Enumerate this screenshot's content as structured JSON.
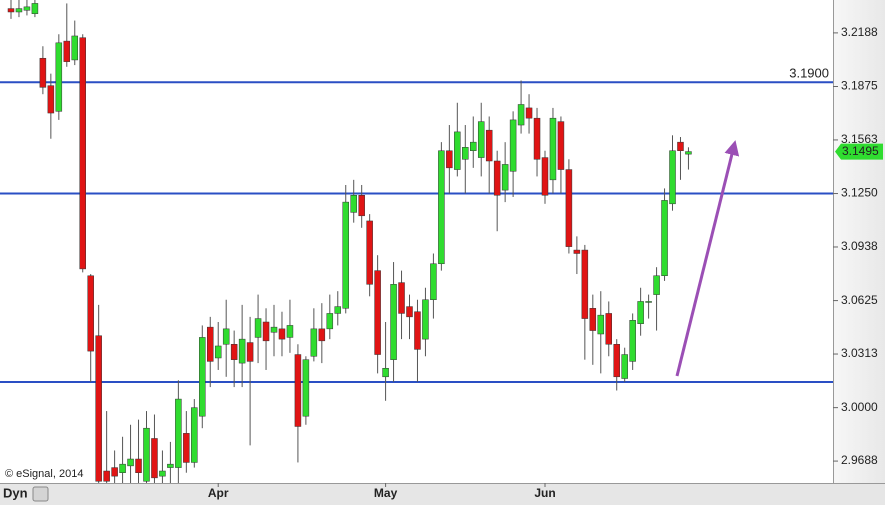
{
  "chart_data": {
    "type": "candlestick",
    "watermark": "© eSignal, 2014",
    "toolbar_label": "Dyn",
    "categories": [
      null,
      null,
      null,
      null,
      null,
      null,
      null,
      null,
      null,
      null,
      null,
      null,
      null,
      null,
      null,
      null,
      null,
      null,
      null,
      null,
      null,
      null,
      null,
      null,
      null,
      null,
      "Apr",
      null,
      null,
      null,
      null,
      null,
      null,
      null,
      null,
      null,
      null,
      null,
      null,
      null,
      null,
      null,
      null,
      null,
      null,
      null,
      null,
      "May",
      null,
      null,
      null,
      null,
      null,
      null,
      null,
      null,
      null,
      null,
      null,
      null,
      null,
      null,
      null,
      null,
      null,
      null,
      null,
      "Jun",
      null,
      null,
      null,
      null,
      null,
      null,
      null,
      null,
      null,
      null,
      null,
      null,
      null,
      null,
      null,
      null,
      null,
      null
    ],
    "open": [
      3.233,
      3.231,
      3.232,
      3.23,
      3.204,
      3.188,
      3.173,
      3.214,
      3.203,
      3.216,
      3.077,
      3.042,
      2.963,
      2.965,
      2.962,
      2.966,
      2.97,
      2.957,
      2.982,
      2.96,
      2.965,
      2.965,
      2.985,
      2.968,
      2.995,
      3.047,
      3.029,
      3.037,
      3.037,
      3.026,
      3.038,
      3.041,
      3.05,
      3.044,
      3.046,
      3.041,
      3.031,
      2.995,
      3.03,
      3.046,
      3.046,
      3.055,
      3.058,
      3.114,
      3.124,
      3.109,
      3.08,
      3.018,
      3.028,
      3.073,
      3.059,
      3.056,
      3.04,
      3.063,
      3.084,
      3.15,
      3.139,
      3.145,
      3.15,
      3.146,
      3.162,
      3.144,
      3.127,
      3.138,
      3.165,
      3.175,
      3.169,
      3.146,
      3.133,
      3.167,
      3.139,
      3.092,
      3.092,
      3.058,
      3.043,
      3.055,
      3.037,
      3.017,
      3.027,
      3.049,
      3.062,
      3.066,
      3.077,
      3.119,
      3.155,
      3.148
    ],
    "high": [
      3.238,
      3.238,
      3.238,
      3.238,
      3.211,
      3.195,
      3.218,
      3.236,
      3.226,
      3.218,
      3.078,
      3.06,
      2.998,
      2.975,
      2.983,
      2.99,
      2.993,
      2.998,
      2.996,
      2.975,
      2.98,
      3.016,
      2.998,
      3.005,
      3.048,
      3.053,
      3.05,
      3.063,
      3.045,
      3.06,
      3.053,
      3.066,
      3.058,
      3.06,
      3.056,
      3.063,
      3.037,
      3.03,
      3.058,
      3.061,
      3.066,
      3.068,
      3.13,
      3.133,
      3.13,
      3.113,
      3.089,
      3.05,
      3.085,
      3.08,
      3.066,
      3.063,
      3.07,
      3.09,
      3.155,
      3.165,
      3.178,
      3.165,
      3.17,
      3.178,
      3.17,
      3.15,
      3.155,
      3.173,
      3.191,
      3.183,
      3.175,
      3.15,
      3.175,
      3.17,
      3.145,
      3.1,
      3.095,
      3.066,
      3.068,
      3.062,
      3.04,
      3.035,
      3.055,
      3.07,
      3.066,
      3.082,
      3.128,
      3.159,
      3.158,
      3.152
    ],
    "low": [
      3.227,
      3.228,
      3.229,
      3.228,
      3.183,
      3.157,
      3.168,
      3.199,
      3.2,
      3.079,
      3.015,
      2.956,
      2.956,
      2.956,
      2.956,
      2.956,
      2.956,
      2.956,
      2.956,
      2.956,
      2.956,
      2.956,
      2.962,
      2.965,
      2.988,
      3.012,
      3.022,
      3.018,
      3.012,
      3.012,
      2.978,
      3.026,
      3.022,
      3.03,
      3.03,
      3.032,
      2.968,
      2.99,
      3.027,
      3.026,
      3.04,
      3.048,
      3.055,
      3.108,
      3.105,
      3.065,
      3.02,
      3.004,
      3.015,
      3.04,
      3.04,
      3.015,
      3.03,
      3.052,
      3.08,
      3.125,
      3.135,
      3.125,
      3.14,
      3.135,
      3.125,
      3.103,
      3.12,
      3.123,
      3.16,
      3.16,
      3.135,
      3.119,
      3.125,
      3.125,
      3.09,
      3.078,
      3.028,
      3.025,
      3.02,
      3.03,
      3.01,
      3.015,
      3.022,
      3.042,
      3.052,
      3.045,
      3.074,
      3.115,
      3.133,
      3.139
    ],
    "close": [
      3.231,
      3.233,
      3.234,
      3.236,
      3.187,
      3.172,
      3.213,
      3.202,
      3.217,
      3.081,
      3.033,
      2.957,
      2.957,
      2.96,
      2.967,
      2.97,
      2.962,
      2.988,
      2.959,
      2.963,
      2.967,
      3.005,
      2.968,
      3.0,
      3.041,
      3.027,
      3.036,
      3.046,
      3.028,
      3.04,
      3.027,
      3.052,
      3.039,
      3.047,
      3.04,
      3.048,
      2.989,
      3.028,
      3.046,
      3.039,
      3.055,
      3.059,
      3.12,
      3.124,
      3.112,
      3.072,
      3.031,
      3.023,
      3.072,
      3.055,
      3.053,
      3.034,
      3.063,
      3.084,
      3.15,
      3.14,
      3.161,
      3.152,
      3.155,
      3.167,
      3.144,
      3.124,
      3.142,
      3.168,
      3.177,
      3.169,
      3.145,
      3.124,
      3.169,
      3.139,
      3.094,
      3.09,
      3.052,
      3.045,
      3.054,
      3.037,
      3.018,
      3.031,
      3.051,
      3.062,
      3.062,
      3.077,
      3.121,
      3.15,
      3.15,
      3.1495
    ],
    "up_color": "#2fdc2f",
    "down_color": "#e01414",
    "ylim": [
      2.956,
      3.238
    ],
    "yticks": [
      3.2188,
      3.1875,
      3.1563,
      {
        "value": 3.125,
        "label": "3.1250"
      },
      3.0938,
      3.0625,
      3.0313,
      {
        "value": 3,
        "label": "3.0000"
      },
      2.9688
    ],
    "hline_color": "#2a4fc4",
    "hlines": [
      {
        "value": 3.19,
        "label": "3.1900"
      },
      {
        "value": 3.125
      },
      {
        "value": 3.015
      }
    ],
    "last_price": {
      "value": 3.1495,
      "label": "3.1495"
    }
  }
}
